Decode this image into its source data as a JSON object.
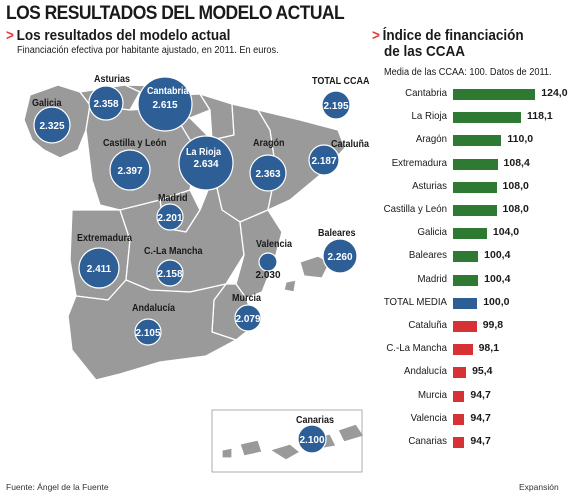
{
  "title": "LOS RESULTADOS DEL MODELO ACTUAL",
  "map_section": {
    "title": "Los resultados del modelo actual",
    "subtitle": "Financiación efectiva por habitante ajustado, en 2011. En euros."
  },
  "bar_section": {
    "title_line1": "Índice de financiación",
    "title_line2": "de las CCAA",
    "subtitle": "Media de las CCAA: 100. Datos de 2011."
  },
  "footer": {
    "source": "Fuente: Ángel de la Fuente",
    "credit": "Expansión"
  },
  "colors": {
    "bubble": "#2e5e96",
    "map_land": "#9a9a9a",
    "map_border": "#ffffff",
    "bar_above": "#2e7a32",
    "bar_mean": "#2e5e96",
    "bar_below": "#d63236",
    "arrow": "#e23a3a"
  },
  "chart_data": [
    {
      "type": "bubble-map",
      "title": "Los resultados del modelo actual",
      "unit": "euros",
      "regions": [
        {
          "name": "Galicia",
          "value": "2.325"
        },
        {
          "name": "Asturias",
          "value": "2.358"
        },
        {
          "name": "Cantabria",
          "value": "2.615"
        },
        {
          "name": "TOTAL CCAA",
          "value": "2.195"
        },
        {
          "name": "Castilla y León",
          "value": "2.397"
        },
        {
          "name": "La Rioja",
          "value": "2.634"
        },
        {
          "name": "Aragón",
          "value": "2.363"
        },
        {
          "name": "Cataluña",
          "value": "2.187"
        },
        {
          "name": "Madrid",
          "value": "2.201"
        },
        {
          "name": "Valencia",
          "value": "2.030"
        },
        {
          "name": "Baleares",
          "value": "2.260"
        },
        {
          "name": "Extremadura",
          "value": "2.411"
        },
        {
          "name": "C.-La Mancha",
          "value": "2.158"
        },
        {
          "name": "Murcia",
          "value": "2.079"
        },
        {
          "name": "Andalucía",
          "value": "2.105"
        },
        {
          "name": "Canarias",
          "value": "2.100"
        }
      ]
    },
    {
      "type": "bar",
      "orientation": "horizontal",
      "title": "Índice de financiación de las CCAA",
      "reference": 100,
      "xlim": [
        90,
        125
      ],
      "categories": [
        "Cantabria",
        "La Rioja",
        "Aragón",
        "Extremadura",
        "Asturias",
        "Castilla y León",
        "Galicia",
        "Baleares",
        "Madrid",
        "TOTAL MEDIA",
        "Cataluña",
        "C.-La Mancha",
        "Andalucía",
        "Murcia",
        "Valencia",
        "Canarias"
      ],
      "values": [
        124.0,
        118.1,
        110.0,
        108.4,
        108.0,
        108.0,
        104.0,
        100.4,
        100.4,
        100.0,
        99.8,
        98.1,
        95.4,
        94.7,
        94.7,
        94.7
      ],
      "labels": [
        "124,0",
        "118,1",
        "110,0",
        "108,4",
        "108,0",
        "108,0",
        "104,0",
        "100,4",
        "100,4",
        "100,0",
        "99,8",
        "98,1",
        "95,4",
        "94,7",
        "94,7",
        "94,7"
      ]
    }
  ]
}
